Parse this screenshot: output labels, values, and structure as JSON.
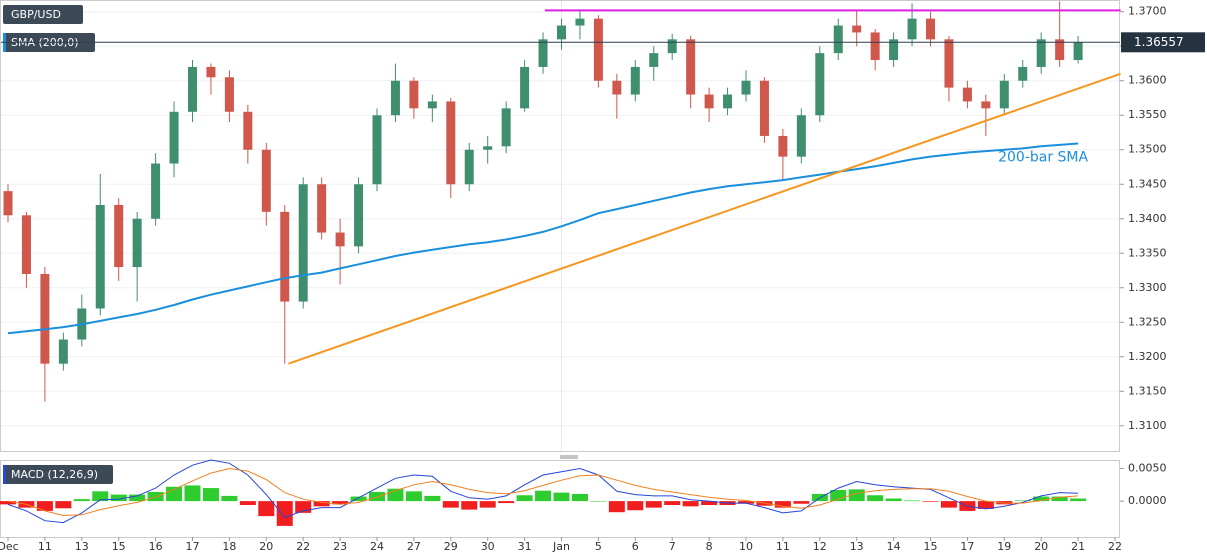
{
  "chart_data": [
    {
      "type": "candlestick",
      "title": "GBP/USD",
      "open": [
        1.344,
        1.3405,
        1.332,
        1.319,
        1.3225,
        1.327,
        1.342,
        1.333,
        1.34,
        1.348,
        1.3555,
        1.362,
        1.3605,
        1.3555,
        1.35,
        1.341,
        1.328,
        1.345,
        1.338,
        1.336,
        1.345,
        1.355,
        1.36,
        1.356,
        1.357,
        1.345,
        1.35,
        1.3505,
        1.356,
        1.362,
        1.366,
        1.368,
        1.369,
        1.36,
        1.358,
        1.362,
        1.364,
        1.366,
        1.358,
        1.356,
        1.358,
        1.36,
        1.352,
        1.349,
        1.355,
        1.364,
        1.368,
        1.367,
        1.363,
        1.366,
        1.369,
        1.366,
        1.359,
        1.357,
        1.356,
        1.36,
        1.362,
        1.366,
        1.363,
        null,
        null
      ],
      "high": [
        1.345,
        1.341,
        1.333,
        1.3235,
        1.329,
        1.3465,
        1.343,
        1.341,
        1.3495,
        1.357,
        1.363,
        1.3625,
        1.3615,
        1.3565,
        1.351,
        1.342,
        1.346,
        1.346,
        1.34,
        1.346,
        1.356,
        1.3625,
        1.3605,
        1.358,
        1.3575,
        1.351,
        1.352,
        1.357,
        1.363,
        1.367,
        1.369,
        1.3702,
        1.3695,
        1.361,
        1.363,
        1.365,
        1.3668,
        1.3665,
        1.359,
        1.359,
        1.3615,
        1.3605,
        1.353,
        1.356,
        1.365,
        1.369,
        1.3702,
        1.3675,
        1.367,
        1.3712,
        1.37,
        1.3665,
        1.36,
        1.358,
        1.361,
        1.363,
        1.367,
        1.3715,
        1.3665,
        null,
        null
      ],
      "low": [
        1.3395,
        1.33,
        1.3135,
        1.318,
        1.3215,
        1.326,
        1.331,
        1.328,
        1.339,
        1.346,
        1.354,
        1.358,
        1.354,
        1.348,
        1.339,
        1.319,
        1.327,
        1.337,
        1.3305,
        1.335,
        1.344,
        1.354,
        1.3545,
        1.354,
        1.343,
        1.344,
        1.348,
        1.3495,
        1.3555,
        1.361,
        1.3645,
        1.366,
        1.359,
        1.3545,
        1.357,
        1.36,
        1.363,
        1.356,
        1.354,
        1.355,
        1.357,
        1.351,
        1.3455,
        1.348,
        1.354,
        1.363,
        1.365,
        1.3615,
        1.362,
        1.365,
        1.365,
        1.357,
        1.356,
        1.352,
        1.355,
        1.359,
        1.361,
        1.362,
        1.3625,
        null,
        null
      ],
      "close": [
        1.3405,
        1.332,
        1.319,
        1.3225,
        1.327,
        1.342,
        1.333,
        1.34,
        1.348,
        1.3555,
        1.362,
        1.3605,
        1.3555,
        1.35,
        1.341,
        1.328,
        1.345,
        1.338,
        1.336,
        1.345,
        1.355,
        1.36,
        1.356,
        1.357,
        1.345,
        1.35,
        1.3505,
        1.356,
        1.362,
        1.366,
        1.368,
        1.369,
        1.36,
        1.358,
        1.362,
        1.364,
        1.366,
        1.358,
        1.356,
        1.358,
        1.36,
        1.352,
        1.349,
        1.355,
        1.364,
        1.368,
        1.367,
        1.363,
        1.366,
        1.369,
        1.366,
        1.359,
        1.357,
        1.356,
        1.36,
        1.362,
        1.366,
        1.363,
        1.36557,
        null,
        null
      ],
      "up_color": "#3f8f6f",
      "down_color": "#d0574c",
      "ylim": [
        1.3062,
        1.3717
      ],
      "yticks": [
        {
          "value": 1.31,
          "label": "1.3100"
        },
        {
          "value": 1.315,
          "label": "1.3150"
        },
        {
          "value": 1.32,
          "label": "1.3200"
        },
        {
          "value": 1.325,
          "label": "1.3250"
        },
        {
          "value": 1.33,
          "label": "1.3300"
        },
        {
          "value": 1.335,
          "label": "1.3350"
        },
        {
          "value": 1.34,
          "label": "1.3400"
        },
        {
          "value": 1.345,
          "label": "1.3450"
        },
        {
          "value": 1.35,
          "label": "1.3500"
        },
        {
          "value": 1.355,
          "label": "1.3550"
        },
        {
          "value": 1.36,
          "label": "1.3600"
        },
        {
          "value": 1.365,
          "label": "1.3650"
        },
        {
          "value": 1.37,
          "label": "1.3700"
        }
      ],
      "grid": true,
      "last_price": 1.36557,
      "overlays": [
        {
          "name": "SMA (200,0)",
          "color": "#1a8fdc",
          "values": [
            1.3234,
            1.3237,
            1.324,
            1.3243,
            1.3247,
            1.3252,
            1.3257,
            1.3262,
            1.3268,
            1.3275,
            1.3283,
            1.329,
            1.3296,
            1.3302,
            1.3308,
            1.3314,
            1.3318,
            1.3322,
            1.3328,
            1.3334,
            1.334,
            1.3346,
            1.3351,
            1.3355,
            1.3359,
            1.3363,
            1.3366,
            1.337,
            1.3375,
            1.3381,
            1.3389,
            1.3398,
            1.3408,
            1.3414,
            1.342,
            1.3426,
            1.3432,
            1.3438,
            1.3443,
            1.3447,
            1.345,
            1.3453,
            1.3456,
            1.346,
            1.3464,
            1.3468,
            1.3472,
            1.3476,
            1.3481,
            1.3486,
            1.349,
            1.3493,
            1.3496,
            1.3498,
            1.35,
            1.3502,
            1.3505,
            1.3507,
            1.3509,
            null,
            null
          ],
          "annotation": "200-bar SMA"
        }
      ],
      "lines": [
        {
          "color": "#f5961e",
          "x": [
            15.2,
            60.3
          ],
          "y": [
            1.319,
            1.361
          ]
        },
        {
          "color": "#e020e0",
          "x": [
            29.1,
            60.3
          ],
          "y": [
            1.3702,
            1.3702
          ]
        }
      ]
    },
    {
      "type": "macd",
      "title": "MACD (12,26,9)",
      "categories": [
        "Dec",
        null,
        "11",
        null,
        "13",
        null,
        "15",
        null,
        "16",
        null,
        "17",
        null,
        "18",
        null,
        "20",
        null,
        "22",
        null,
        "23",
        null,
        "24",
        null,
        "27",
        null,
        "29",
        null,
        "30",
        null,
        "31",
        null,
        "Jan",
        null,
        "5",
        null,
        "6",
        null,
        "7",
        null,
        "8",
        null,
        "10",
        null,
        "11",
        null,
        "12",
        null,
        "13",
        null,
        "14",
        null,
        "15",
        null,
        "17",
        null,
        "19",
        null,
        "20",
        null,
        "21",
        null,
        "22"
      ],
      "histogram": {
        "up_color": "#2ecc2e",
        "down_color": "#f01e1e",
        "values": [
          -0.0005,
          -0.001,
          -0.0015,
          -0.0011,
          0.0003,
          0.0015,
          0.001,
          0.001,
          0.0014,
          0.0022,
          0.0024,
          0.002,
          0.0008,
          -0.0006,
          -0.0023,
          -0.0038,
          -0.0018,
          -0.0008,
          -0.0005,
          0.0007,
          0.0014,
          0.0019,
          0.0015,
          0.0008,
          -0.001,
          -0.0013,
          -0.001,
          -0.0003,
          0.0009,
          0.0016,
          0.0013,
          0.0011,
          0.0,
          -0.0017,
          -0.0014,
          -0.001,
          -0.0006,
          -0.0008,
          -0.0006,
          -0.0006,
          -0.0004,
          -0.0007,
          -0.001,
          -0.0004,
          0.0011,
          0.0017,
          0.0018,
          0.0009,
          0.0004,
          0.0001,
          -0.0001,
          -0.001,
          -0.0015,
          -0.0012,
          -0.0005,
          0.0001,
          0.0007,
          0.0007,
          0.0004,
          null,
          null
        ]
      },
      "series": [
        {
          "color": "#2646d8",
          "values": [
            -0.0005,
            -0.0015,
            -0.003,
            -0.0033,
            -0.0018,
            0.0002,
            0.0003,
            0.0008,
            0.002,
            0.004,
            0.0055,
            0.0063,
            0.0058,
            0.004,
            0.001,
            -0.0025,
            -0.0015,
            -0.001,
            -0.001,
            0.0005,
            0.002,
            0.0035,
            0.004,
            0.0038,
            0.0015,
            0.0005,
            0.0003,
            0.0008,
            0.0025,
            0.004,
            0.0045,
            0.005,
            0.004,
            0.0015,
            0.001,
            0.0008,
            0.0008,
            0.0002,
            0.0,
            -0.0003,
            -0.0003,
            -0.001,
            -0.0018,
            -0.0015,
            0.0005,
            0.002,
            0.003,
            0.0025,
            0.0022,
            0.002,
            0.0018,
            0.0005,
            -0.0008,
            -0.0012,
            -0.0008,
            -0.0002,
            0.0008,
            0.0013,
            0.0012,
            null,
            null
          ]
        },
        {
          "color": "#f2801e",
          "values": [
            0.0,
            -0.0005,
            -0.0015,
            -0.0022,
            -0.0021,
            -0.0013,
            -0.0007,
            -0.0002,
            0.0006,
            0.0018,
            0.0031,
            0.0043,
            0.005,
            0.0046,
            0.0033,
            0.0013,
            0.0003,
            -0.0002,
            -0.0005,
            -0.0002,
            0.0006,
            0.0016,
            0.0025,
            0.003,
            0.0025,
            0.0018,
            0.0013,
            0.0011,
            0.0016,
            0.0024,
            0.0032,
            0.0039,
            0.004,
            0.0032,
            0.0024,
            0.0018,
            0.0014,
            0.001,
            0.0006,
            0.0003,
            0.0001,
            -0.0003,
            -0.0008,
            -0.0011,
            -0.0006,
            0.0003,
            0.0012,
            0.0016,
            0.0018,
            0.0019,
            0.0019,
            0.0015,
            0.0007,
            0.0,
            -0.0003,
            -0.0003,
            0.0001,
            0.0006,
            0.0008,
            null,
            null
          ]
        }
      ],
      "ylim": [
        -0.0055,
        0.0063
      ],
      "yticks": [
        {
          "value": 0,
          "label": "0.0000"
        },
        {
          "value": 0.005,
          "label": "0.0050"
        }
      ]
    }
  ]
}
